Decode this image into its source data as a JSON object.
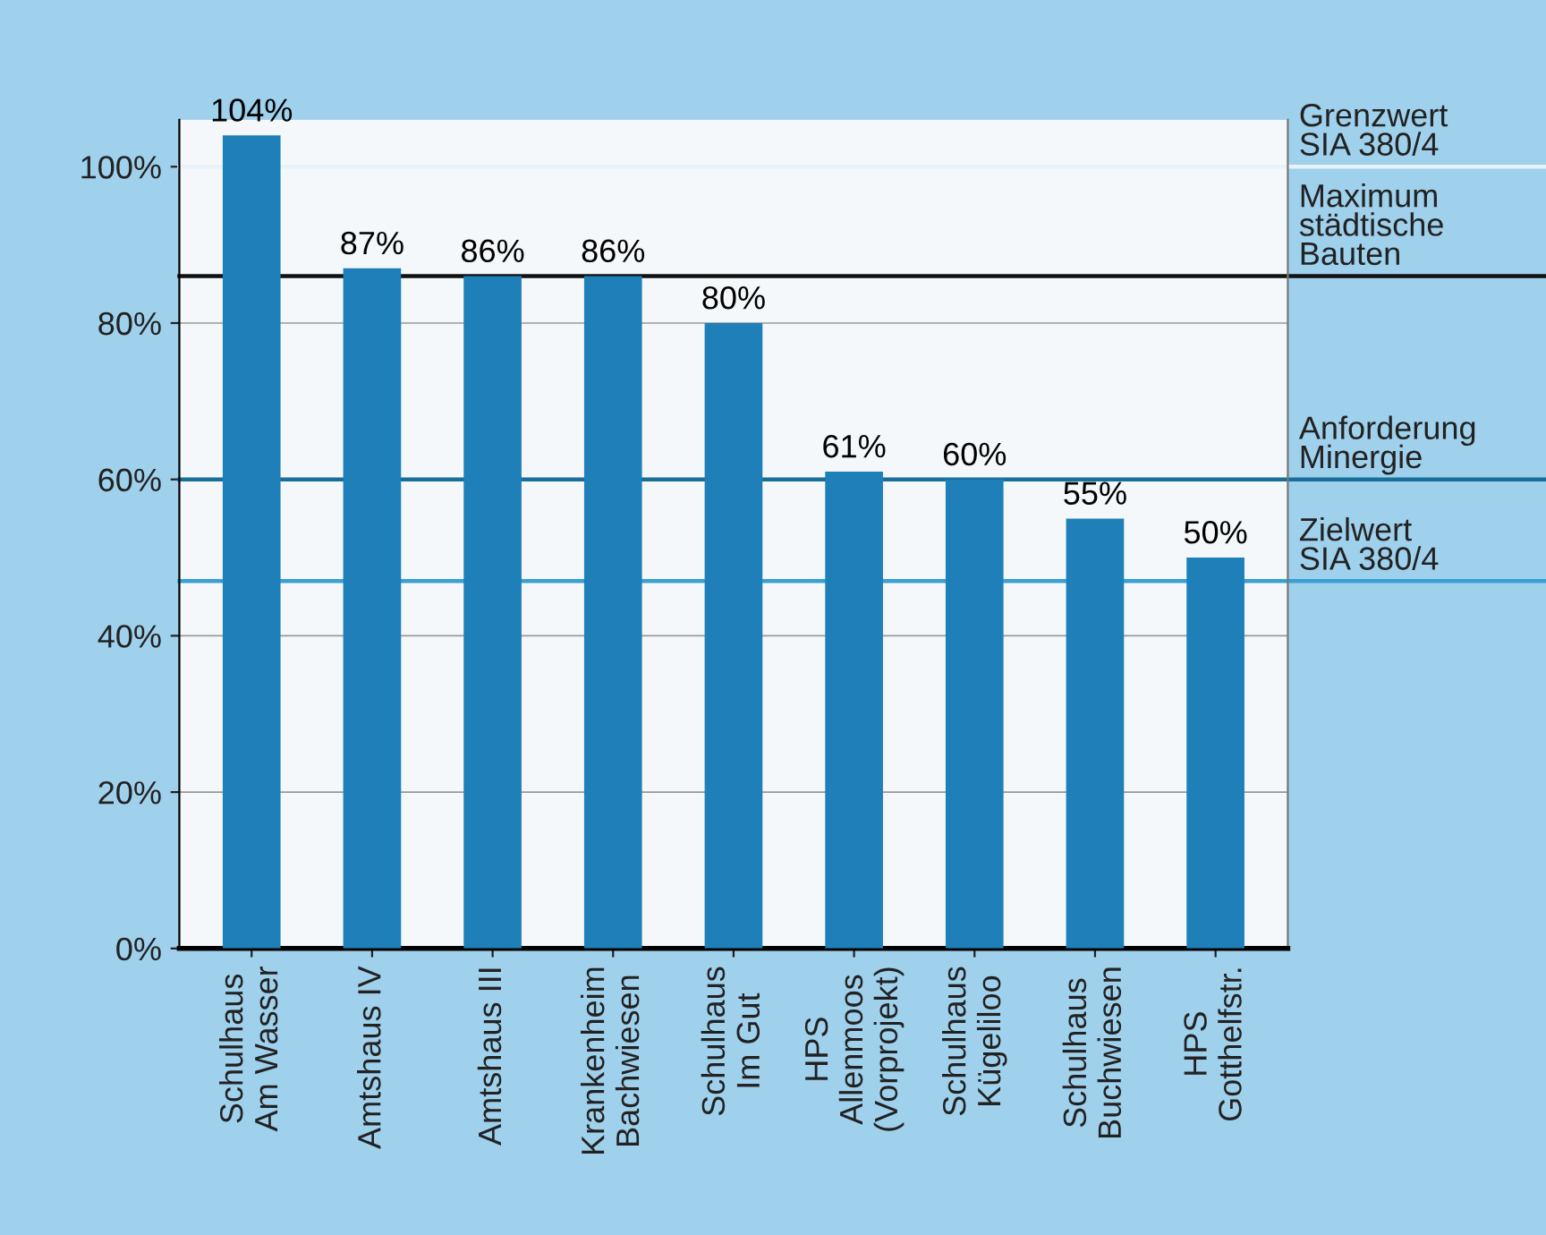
{
  "chart_data": {
    "type": "bar",
    "categories": [
      "Schulhaus\nAm Wasser",
      "Amtshaus IV",
      "Amtshaus III",
      "Krankenheim\nBachwiesen",
      "Schulhaus\nIm Gut",
      "HPS\nAllenmoos\n(Vorprojekt)",
      "Schulhaus\nKügeliloo",
      "Schulhaus\nBuchwiesen",
      "HPS\nGotthelfstr."
    ],
    "values": [
      104,
      87,
      86,
      86,
      80,
      61,
      60,
      55,
      50
    ],
    "color": "#1f7fb8",
    "value_labels": [
      "104%",
      "87%",
      "86%",
      "86%",
      "80%",
      "61%",
      "60%",
      "55%",
      "50%"
    ],
    "ylim": [
      0,
      106
    ],
    "yticks": [
      {
        "value": 0,
        "label": "0%"
      },
      {
        "value": 20,
        "label": "20%"
      },
      {
        "value": 40,
        "label": "40%"
      },
      {
        "value": 60,
        "label": "60%"
      },
      {
        "value": 80,
        "label": "80%"
      },
      {
        "value": 100,
        "label": "100%"
      }
    ],
    "grid": "y",
    "ref_lines": [
      {
        "axis": "y",
        "value": 100,
        "label": "Grenzwert\nSIA 380/4",
        "color": "#e8f2f8"
      },
      {
        "axis": "y",
        "value": 86,
        "label": "Maximum\nstädtische\nBauten",
        "color": "#111111"
      },
      {
        "axis": "y",
        "value": 60,
        "label": "Anforderung\nMinergie",
        "color": "#1a6e9a"
      },
      {
        "axis": "y",
        "value": 47,
        "label": "Zielwert\nSIA 380/4",
        "color": "#3aa0d0"
      }
    ]
  }
}
